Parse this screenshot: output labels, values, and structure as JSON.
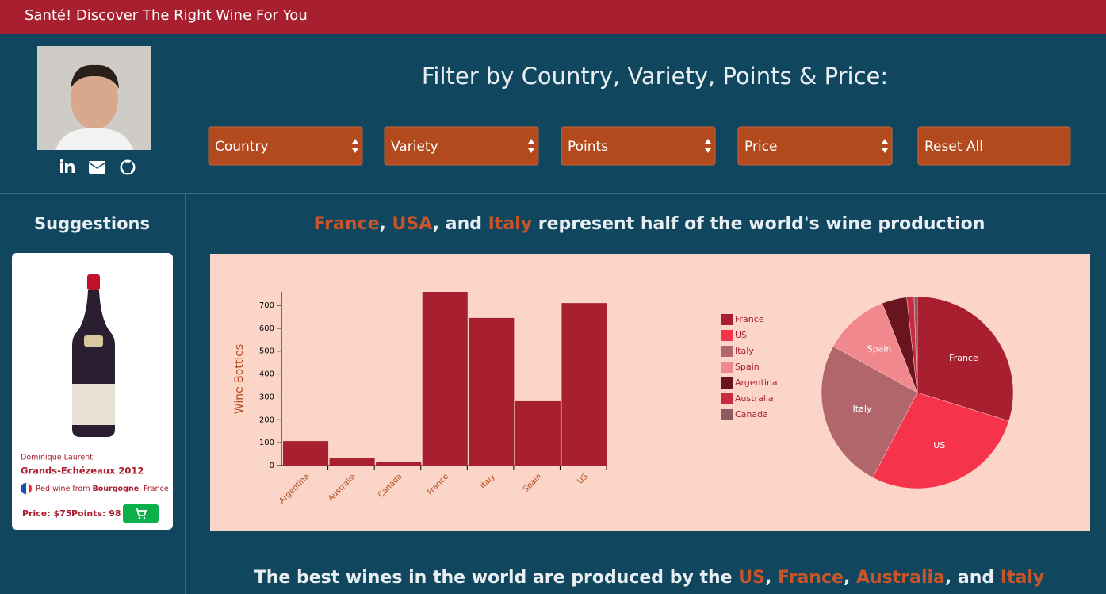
{
  "header": {
    "title": "Santé! Discover The Right Wine For You"
  },
  "filters": {
    "title": "Filter by Country, Variety, Points & Price:",
    "controls": [
      "Country",
      "Variety",
      "Points",
      "Price",
      "Reset All"
    ]
  },
  "sidebar": {
    "title": "Suggestions",
    "card": {
      "producer": "Dominique Laurent",
      "name": "Grands-Echézeaux 2012",
      "description": [
        "Red wine from ",
        "Bourgogne",
        ", France"
      ],
      "price": "Price: $75",
      "points": "Points: 98"
    }
  },
  "sections": [
    {
      "title": [
        {
          "text": "France",
          "highlight": true
        },
        {
          "text": ", ",
          "highlight": false
        },
        {
          "text": "USA",
          "highlight": true
        },
        {
          "text": ", and ",
          "highlight": false
        },
        {
          "text": "Italy",
          "highlight": true
        },
        {
          "text": " represent half of the world's wine production",
          "highlight": false
        }
      ]
    },
    {
      "title": [
        {
          "text": "The best wines in the world are produced by the ",
          "highlight": false
        },
        {
          "text": "US",
          "highlight": true
        },
        {
          "text": ", ",
          "highlight": false
        },
        {
          "text": "France",
          "highlight": true
        },
        {
          "text": ", ",
          "highlight": false
        },
        {
          "text": "Australia",
          "highlight": true
        },
        {
          "text": ", and ",
          "highlight": false
        },
        {
          "text": "Italy",
          "highlight": true
        }
      ]
    }
  ],
  "chart_data": [
    {
      "type": "bar",
      "y_label": "Wine Bottles",
      "categories": [
        "Argentina",
        "Australia",
        "Canada",
        "France",
        "Italy",
        "Spain",
        "US"
      ],
      "values": [
        107,
        31,
        14,
        759,
        645,
        281,
        710
      ],
      "color": "#a8202f",
      "ylim": [
        0,
        759
      ],
      "yticks": [
        0,
        100,
        200,
        300,
        400,
        500,
        600,
        700
      ]
    },
    {
      "type": "pie",
      "categories": [
        "France",
        "US",
        "Italy",
        "Spain",
        "Argentina",
        "Australia",
        "Canada"
      ],
      "values": [
        759,
        710,
        645,
        281,
        107,
        31,
        14
      ],
      "colors": [
        "#a8202f",
        "#f5334a",
        "#b0666b",
        "#f0888e",
        "#6a1420",
        "#c82a3f",
        "#8c5a60"
      ],
      "slice_labels": [
        "France",
        "US",
        "Italy",
        "Spain",
        null,
        null,
        null
      ]
    }
  ]
}
